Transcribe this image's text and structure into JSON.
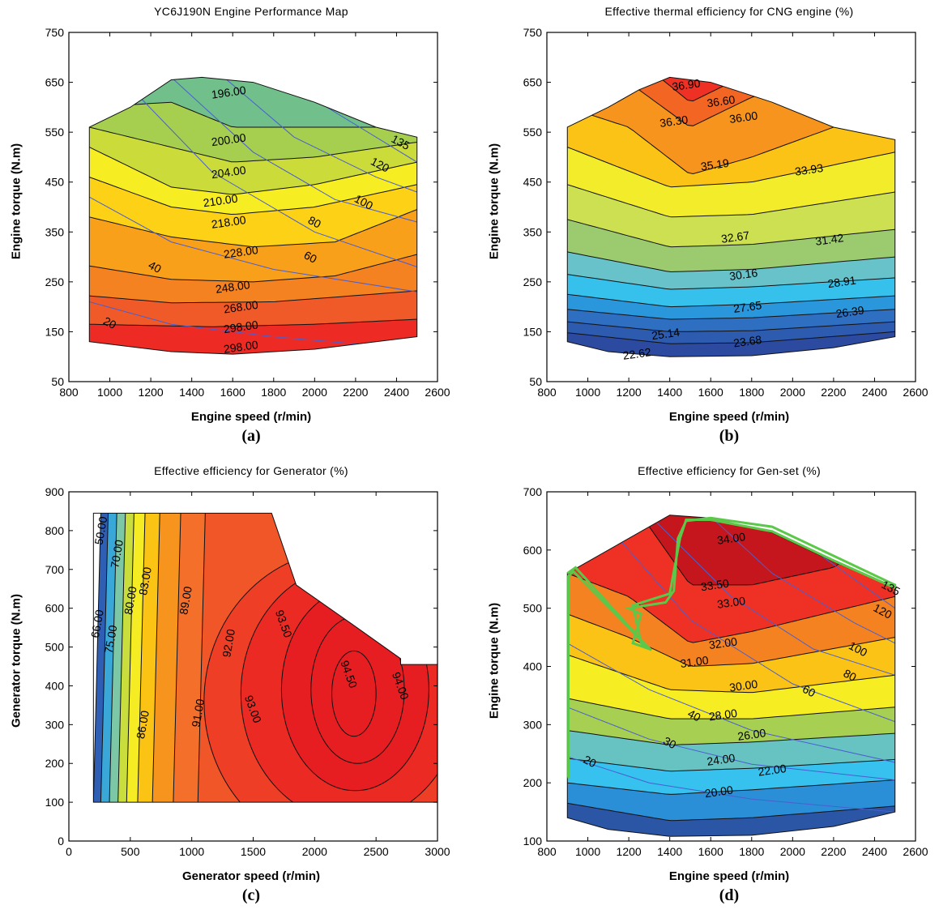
{
  "chart_data": [
    {
      "id": "a",
      "type": "heatmap",
      "title": "YC6J190N Engine Performance Map",
      "xlabel": "Engine speed (r/min)",
      "ylabel": "Engine torque (N.m)",
      "panel_label": "(a)",
      "xlim": [
        800,
        2600
      ],
      "ylim": [
        50,
        750
      ],
      "xticks": [
        "800",
        "1000",
        "1200",
        "1400",
        "1600",
        "1800",
        "2000",
        "2200",
        "2400",
        "2600"
      ],
      "yticks": [
        "50",
        "150",
        "250",
        "350",
        "450",
        "550",
        "650",
        "750"
      ],
      "band_colors": [
        "#ee2a24",
        "#f05a28",
        "#f58220",
        "#f9a01b",
        "#fcd116",
        "#f6ed23",
        "#cbdc3a",
        "#a6cf4f",
        "#71bf8b",
        "#6bc5d8"
      ],
      "contour_labels": [
        {
          "text": "196.00",
          "x": 1580,
          "y": 630
        },
        {
          "text": "200.00",
          "x": 1580,
          "y": 535
        },
        {
          "text": "204.00",
          "x": 1580,
          "y": 470
        },
        {
          "text": "210.00",
          "x": 1540,
          "y": 413
        },
        {
          "text": "218.00",
          "x": 1580,
          "y": 370
        },
        {
          "text": "228.00",
          "x": 1640,
          "y": 310
        },
        {
          "text": "248.00",
          "x": 1600,
          "y": 240
        },
        {
          "text": "268.00",
          "x": 1640,
          "y": 200
        },
        {
          "text": "298.00",
          "x": 1640,
          "y": 160
        },
        {
          "text": "298.00",
          "x": 1640,
          "y": 120
        }
      ],
      "power_labels": [
        {
          "text": "20",
          "x": 1000,
          "y": 168
        },
        {
          "text": "40",
          "x": 1220,
          "y": 280
        },
        {
          "text": "60",
          "x": 1980,
          "y": 300
        },
        {
          "text": "80",
          "x": 2000,
          "y": 370
        },
        {
          "text": "100",
          "x": 2240,
          "y": 410
        },
        {
          "text": "120",
          "x": 2320,
          "y": 485
        },
        {
          "text": "135",
          "x": 2420,
          "y": 530
        }
      ]
    },
    {
      "id": "b",
      "type": "heatmap",
      "title": "Effective thermal efficiency for CNG engine (%)",
      "xlabel": "Engine speed (r/min)",
      "ylabel": "Engine torque (N.m)",
      "panel_label": "(b)",
      "xlim": [
        800,
        2600
      ],
      "ylim": [
        50,
        750
      ],
      "xticks": [
        "800",
        "1000",
        "1200",
        "1400",
        "1600",
        "1800",
        "2000",
        "2200",
        "2400",
        "2600"
      ],
      "yticks": [
        "50",
        "150",
        "250",
        "350",
        "450",
        "550",
        "650",
        "750"
      ],
      "band_colors": [
        "#2b4aa0",
        "#2d5bb0",
        "#2f6fc2",
        "#2a97dc",
        "#36c0ec",
        "#67c3c9",
        "#9ccb6f",
        "#cde052",
        "#f3ec2a",
        "#fbc315",
        "#f7941d",
        "#f26522",
        "#ee3124"
      ],
      "contour_labels": [
        {
          "text": "36.90",
          "x": 1480,
          "y": 645
        },
        {
          "text": "36.60",
          "x": 1650,
          "y": 612
        },
        {
          "text": "36.30",
          "x": 1420,
          "y": 572
        },
        {
          "text": "36.00",
          "x": 1760,
          "y": 580
        },
        {
          "text": "35.19",
          "x": 1620,
          "y": 485
        },
        {
          "text": "33.93",
          "x": 2080,
          "y": 475
        },
        {
          "text": "32.67",
          "x": 1720,
          "y": 340
        },
        {
          "text": "31.42",
          "x": 2180,
          "y": 335
        },
        {
          "text": "30.16",
          "x": 1760,
          "y": 265
        },
        {
          "text": "28.91",
          "x": 2240,
          "y": 250
        },
        {
          "text": "27.65",
          "x": 1780,
          "y": 200
        },
        {
          "text": "26.39",
          "x": 2280,
          "y": 190
        },
        {
          "text": "25.14",
          "x": 1380,
          "y": 146
        },
        {
          "text": "23.68",
          "x": 1780,
          "y": 131
        },
        {
          "text": "22.62",
          "x": 1240,
          "y": 106
        }
      ]
    },
    {
      "id": "c",
      "type": "heatmap",
      "title": "Effective efficiency for Generator (%)",
      "xlabel": "Generator speed (r/min)",
      "ylabel": "Generator torque (N.m)",
      "panel_label": "(c)",
      "xlim": [
        0,
        3000
      ],
      "ylim": [
        0,
        900
      ],
      "xticks": [
        "0",
        "500",
        "1000",
        "1500",
        "2000",
        "2500",
        "3000"
      ],
      "yticks": [
        "0",
        "100",
        "200",
        "300",
        "400",
        "500",
        "600",
        "700",
        "800",
        "900"
      ],
      "band_colors": [
        "#2f5fb5",
        "#3aa7d9",
        "#7cc7a6",
        "#c9de3c",
        "#f6ec23",
        "#fbc415",
        "#f7941d",
        "#f4702a",
        "#f05628",
        "#ee3e26",
        "#ea2a23",
        "#e61e22"
      ],
      "contour_labels": [
        {
          "text": "50.00",
          "x": 260,
          "y": 800
        },
        {
          "text": "70.00",
          "x": 390,
          "y": 740
        },
        {
          "text": "66.00",
          "x": 230,
          "y": 560
        },
        {
          "text": "75.00",
          "x": 340,
          "y": 520
        },
        {
          "text": "80.00",
          "x": 500,
          "y": 620
        },
        {
          "text": "83.00",
          "x": 620,
          "y": 670
        },
        {
          "text": "86.00",
          "x": 600,
          "y": 300
        },
        {
          "text": "89.00",
          "x": 950,
          "y": 620
        },
        {
          "text": "91.00",
          "x": 1050,
          "y": 330
        },
        {
          "text": "92.00",
          "x": 1300,
          "y": 510
        },
        {
          "text": "93.00",
          "x": 1500,
          "y": 340
        },
        {
          "text": "93.50",
          "x": 1750,
          "y": 560
        },
        {
          "text": "94.50",
          "x": 2280,
          "y": 430
        },
        {
          "text": "94.00",
          "x": 2700,
          "y": 400
        }
      ]
    },
    {
      "id": "d",
      "type": "heatmap",
      "title": "Effective efficiency for Gen-set (%)",
      "xlabel": "Engine speed (r/min)",
      "ylabel": "Engine torque (N.m)",
      "panel_label": "(d)",
      "xlim": [
        800,
        2600
      ],
      "ylim": [
        100,
        700
      ],
      "xticks": [
        "800",
        "1000",
        "1200",
        "1400",
        "1600",
        "1800",
        "2000",
        "2200",
        "2400",
        "2600"
      ],
      "yticks": [
        "100",
        "200",
        "300",
        "400",
        "500",
        "600",
        "700"
      ],
      "band_colors": [
        "#2b55a5",
        "#2a8fd6",
        "#36c1ee",
        "#67c3c2",
        "#a7cf52",
        "#f6ed23",
        "#fbc315",
        "#f58220",
        "#ee3124",
        "#c4161c"
      ],
      "contour_labels": [
        {
          "text": "34.00",
          "x": 1700,
          "y": 620
        },
        {
          "text": "33.50",
          "x": 1620,
          "y": 540
        },
        {
          "text": "33.00",
          "x": 1700,
          "y": 510
        },
        {
          "text": "32.00",
          "x": 1660,
          "y": 440
        },
        {
          "text": "31.00",
          "x": 1520,
          "y": 408
        },
        {
          "text": "30.00",
          "x": 1760,
          "y": 367
        },
        {
          "text": "28.00",
          "x": 1660,
          "y": 317
        },
        {
          "text": "26.00",
          "x": 1800,
          "y": 283
        },
        {
          "text": "24.00",
          "x": 1650,
          "y": 240
        },
        {
          "text": "22.00",
          "x": 1900,
          "y": 222
        },
        {
          "text": "20.00",
          "x": 1640,
          "y": 185
        },
        {
          "text": "20",
          "x": 1010,
          "y": 237
        },
        {
          "text": "30",
          "x": 1400,
          "y": 269
        },
        {
          "text": "40",
          "x": 1520,
          "y": 316
        },
        {
          "text": "60",
          "x": 2080,
          "y": 358
        },
        {
          "text": "80",
          "x": 2280,
          "y": 385
        },
        {
          "text": "100",
          "x": 2320,
          "y": 430
        },
        {
          "text": "120",
          "x": 2440,
          "y": 495
        },
        {
          "text": "135",
          "x": 2480,
          "y": 535
        }
      ]
    }
  ]
}
